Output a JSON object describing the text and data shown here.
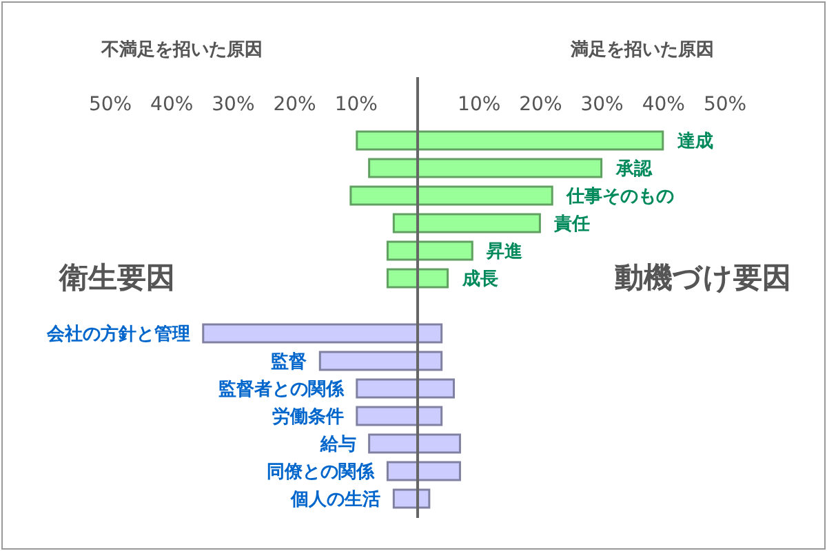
{
  "chart_data": {
    "type": "bar",
    "orientation": "horizontal",
    "categories": [
      "達成",
      "承認",
      "仕事そのもの",
      "責任",
      "昇進",
      "成長",
      null,
      "会社の方針と管理",
      "監督",
      "監督者との関係",
      "労働条件",
      "給与",
      "同僚との関係",
      "個人の生活"
    ],
    "series": [
      {
        "name": "動機づけ要因",
        "color": "#99ff99",
        "base": [
          -10,
          -8,
          -11,
          -4,
          -5,
          -5,
          null,
          null,
          null,
          null,
          null,
          null,
          null,
          null
        ],
        "values": [
          50,
          38,
          33,
          24,
          14,
          10,
          null,
          null,
          null,
          null,
          null,
          null,
          null,
          null
        ]
      },
      {
        "name": "衛生要因",
        "color": "#ccccff",
        "base": [
          null,
          null,
          null,
          null,
          null,
          null,
          null,
          -35,
          -16,
          -10,
          -10,
          -8,
          -5,
          -4
        ],
        "values": [
          null,
          null,
          null,
          null,
          null,
          null,
          null,
          39,
          20,
          16,
          14,
          15,
          12,
          6
        ]
      }
    ],
    "xlim": [
      -50,
      50
    ],
    "xticks": [
      {
        "value": -50,
        "label": "50%"
      },
      {
        "value": -40,
        "label": "40%"
      },
      {
        "value": -30,
        "label": "30%"
      },
      {
        "value": -20,
        "label": "20%"
      },
      {
        "value": -10,
        "label": "10%"
      },
      {
        "value": 10,
        "label": "10%"
      },
      {
        "value": 20,
        "label": "20%"
      },
      {
        "value": 30,
        "label": "30%"
      },
      {
        "value": 40,
        "label": "40%"
      },
      {
        "value": 50,
        "label": "50%"
      }
    ],
    "ref_lines": [
      {
        "axis": "x",
        "value": 0,
        "color": "#666666"
      }
    ],
    "annotations": [
      "不満足を招いた原因",
      "満足を招いた原因"
    ]
  }
}
